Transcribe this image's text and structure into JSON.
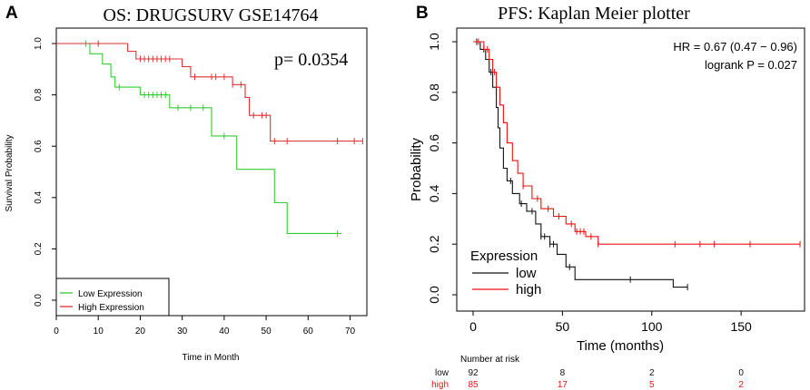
{
  "chart_data": [
    {
      "panel_label": "A",
      "type": "line",
      "subtype": "kaplan-meier",
      "title": "OS: DRUGSURV  GSE14764",
      "xlabel": "Time in Month",
      "ylabel": "Survival Probability",
      "xlim": [
        0,
        74
      ],
      "ylim": [
        0,
        1.0
      ],
      "xticks": [
        0,
        10,
        20,
        30,
        40,
        50,
        60,
        70
      ],
      "yticks": [
        0.0,
        0.2,
        0.4,
        0.6,
        0.8,
        1.0
      ],
      "ytick_labels": [
        "0.0",
        "0.2",
        "0.4",
        "0.6",
        "0.8",
        "1.0"
      ],
      "annotation": "p= 0.0354",
      "legend_position": "bottom-left",
      "series": [
        {
          "name": "Low Expression",
          "color": "#33cc33",
          "steps": [
            [
              0,
              1.0
            ],
            [
              8,
              1.0
            ],
            [
              8,
              0.96
            ],
            [
              11,
              0.96
            ],
            [
              11,
              0.92
            ],
            [
              13,
              0.92
            ],
            [
              13,
              0.87
            ],
            [
              14,
              0.87
            ],
            [
              14,
              0.83
            ],
            [
              20,
              0.83
            ],
            [
              20,
              0.8
            ],
            [
              27,
              0.8
            ],
            [
              27,
              0.75
            ],
            [
              37,
              0.75
            ],
            [
              37,
              0.64
            ],
            [
              43,
              0.64
            ],
            [
              43,
              0.51
            ],
            [
              52,
              0.51
            ],
            [
              52,
              0.38
            ],
            [
              55,
              0.38
            ],
            [
              55,
              0.26
            ],
            [
              68,
              0.26
            ]
          ],
          "censor_times": [
            7,
            15,
            21,
            22,
            23,
            24,
            25,
            26,
            29,
            32,
            35,
            40,
            67
          ]
        },
        {
          "name": "High Expression",
          "color": "#dd3333",
          "steps": [
            [
              0,
              1.0
            ],
            [
              17,
              1.0
            ],
            [
              17,
              0.97
            ],
            [
              19,
              0.97
            ],
            [
              19,
              0.94
            ],
            [
              30,
              0.94
            ],
            [
              30,
              0.91
            ],
            [
              32,
              0.91
            ],
            [
              32,
              0.87
            ],
            [
              42,
              0.87
            ],
            [
              42,
              0.84
            ],
            [
              45,
              0.84
            ],
            [
              45,
              0.79
            ],
            [
              46,
              0.79
            ],
            [
              46,
              0.72
            ],
            [
              51,
              0.72
            ],
            [
              51,
              0.62
            ],
            [
              73,
              0.62
            ]
          ],
          "censor_times": [
            10,
            20,
            21,
            22,
            23,
            24,
            25,
            26,
            27,
            33,
            37,
            38,
            40,
            42,
            44,
            47,
            49,
            50,
            52,
            55,
            67,
            71,
            73
          ]
        }
      ]
    },
    {
      "panel_label": "B",
      "type": "line",
      "subtype": "kaplan-meier",
      "title": "PFS:  Kaplan Meier plotter",
      "xlabel": "Time (months)",
      "ylabel": "Probability",
      "xlim": [
        0,
        185
      ],
      "ylim": [
        0,
        1.0
      ],
      "xticks": [
        0,
        50,
        100,
        150
      ],
      "yticks": [
        0.0,
        0.2,
        0.4,
        0.6,
        0.8,
        1.0
      ],
      "ytick_labels": [
        "0.0",
        "0.2",
        "0.4",
        "0.6",
        "0.8",
        "1.0"
      ],
      "stat_lines": [
        "HR = 0.67 (0.47 − 0.96)",
        "logrank P = 0.027"
      ],
      "legend_title": "Expression",
      "legend_position": "bottom-left",
      "series": [
        {
          "name": "low",
          "color": "#111111",
          "steps": [
            [
              0,
              1.0
            ],
            [
              4,
              1.0
            ],
            [
              4,
              0.97
            ],
            [
              7,
              0.97
            ],
            [
              7,
              0.93
            ],
            [
              9,
              0.93
            ],
            [
              9,
              0.88
            ],
            [
              11,
              0.88
            ],
            [
              11,
              0.82
            ],
            [
              13,
              0.82
            ],
            [
              13,
              0.74
            ],
            [
              14,
              0.74
            ],
            [
              14,
              0.66
            ],
            [
              15,
              0.66
            ],
            [
              15,
              0.58
            ],
            [
              17,
              0.58
            ],
            [
              17,
              0.5
            ],
            [
              19,
              0.5
            ],
            [
              19,
              0.45
            ],
            [
              22,
              0.45
            ],
            [
              22,
              0.4
            ],
            [
              26,
              0.4
            ],
            [
              26,
              0.36
            ],
            [
              30,
              0.36
            ],
            [
              30,
              0.33
            ],
            [
              35,
              0.33
            ],
            [
              35,
              0.28
            ],
            [
              38,
              0.28
            ],
            [
              38,
              0.23
            ],
            [
              43,
              0.23
            ],
            [
              43,
              0.2
            ],
            [
              47,
              0.2
            ],
            [
              47,
              0.16
            ],
            [
              52,
              0.16
            ],
            [
              52,
              0.11
            ],
            [
              57,
              0.11
            ],
            [
              57,
              0.06
            ],
            [
              112,
              0.06
            ],
            [
              112,
              0.03
            ],
            [
              120,
              0.03
            ]
          ],
          "censor_times": [
            2,
            6,
            10,
            21,
            27,
            33,
            38,
            40,
            43,
            45,
            54,
            88,
            120
          ]
        },
        {
          "name": "high",
          "color": "#ee1111",
          "steps": [
            [
              0,
              1.0
            ],
            [
              6,
              1.0
            ],
            [
              6,
              0.97
            ],
            [
              9,
              0.97
            ],
            [
              9,
              0.93
            ],
            [
              11,
              0.93
            ],
            [
              11,
              0.88
            ],
            [
              13,
              0.88
            ],
            [
              13,
              0.82
            ],
            [
              15,
              0.82
            ],
            [
              15,
              0.75
            ],
            [
              17,
              0.75
            ],
            [
              17,
              0.68
            ],
            [
              19,
              0.68
            ],
            [
              19,
              0.6
            ],
            [
              22,
              0.6
            ],
            [
              22,
              0.53
            ],
            [
              25,
              0.53
            ],
            [
              25,
              0.48
            ],
            [
              28,
              0.48
            ],
            [
              28,
              0.43
            ],
            [
              33,
              0.43
            ],
            [
              33,
              0.38
            ],
            [
              38,
              0.38
            ],
            [
              38,
              0.34
            ],
            [
              45,
              0.34
            ],
            [
              45,
              0.31
            ],
            [
              52,
              0.31
            ],
            [
              52,
              0.28
            ],
            [
              57,
              0.28
            ],
            [
              57,
              0.25
            ],
            [
              63,
              0.25
            ],
            [
              63,
              0.23
            ],
            [
              70,
              0.23
            ],
            [
              70,
              0.2
            ],
            [
              183,
              0.2
            ]
          ],
          "censor_times": [
            3,
            8,
            12,
            28,
            36,
            42,
            48,
            55,
            58,
            60,
            62,
            66,
            70,
            113,
            127,
            135,
            155,
            183
          ]
        }
      ],
      "risk_table": {
        "header": "Number at risk",
        "times": [
          0,
          50,
          100,
          150
        ],
        "rows": [
          {
            "label": "low",
            "color": "#111111",
            "counts": [
              "92",
              "8",
              "2",
              "0"
            ]
          },
          {
            "label": "high",
            "color": "#ee1111",
            "counts": [
              "85",
              "17",
              "5",
              "2"
            ]
          }
        ]
      }
    }
  ]
}
